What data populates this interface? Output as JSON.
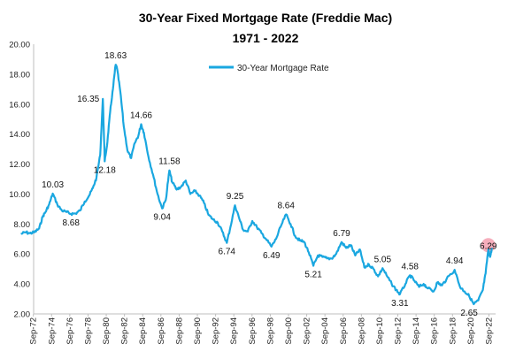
{
  "chart_data": {
    "type": "line",
    "title": "30-Year Fixed Mortgage Rate (Freddie Mac)",
    "subtitle": "1971 - 2022",
    "xlabel": "",
    "ylabel": "",
    "ylim": [
      2.0,
      20.0
    ],
    "yticks": [
      "2.00",
      "4.00",
      "6.00",
      "8.00",
      "10.00",
      "12.00",
      "14.00",
      "16.00",
      "18.00",
      "20.00"
    ],
    "yticks_values": [
      2,
      4,
      6,
      8,
      10,
      12,
      14,
      16,
      18,
      20
    ],
    "xlim": [
      1972.7,
      2023.4
    ],
    "xticks": [
      "Sep-72",
      "Sep-74",
      "Sep-76",
      "Sep-78",
      "Sep-80",
      "Sep-82",
      "Sep-84",
      "Sep-86",
      "Sep-88",
      "Sep-90",
      "Sep-92",
      "Sep-94",
      "Sep-96",
      "Sep-98",
      "Sep-00",
      "Sep-02",
      "Sep-04",
      "Sep-06",
      "Sep-08",
      "Sep-10",
      "Sep-12",
      "Sep-14",
      "Sep-16",
      "Sep-18",
      "Sep-20",
      "Sep-22"
    ],
    "xticks_values": [
      1972.67,
      1974.67,
      1976.67,
      1978.67,
      1980.67,
      1982.67,
      1984.67,
      1986.67,
      1988.67,
      1990.67,
      1992.67,
      1994.67,
      1996.67,
      1998.67,
      2000.67,
      2002.67,
      2004.67,
      2006.67,
      2008.67,
      2010.67,
      2012.67,
      2014.67,
      2016.67,
      2018.67,
      2020.67,
      2022.67
    ],
    "grid": false,
    "legend": "top-center",
    "series": [
      {
        "name": "30-Year Mortgage Rate",
        "color": "#1aa7e0",
        "x": [
          1971.3,
          1971.8,
          1972.3,
          1972.8,
          1973.3,
          1973.7,
          1974.0,
          1974.4,
          1974.8,
          1975.3,
          1975.8,
          1976.3,
          1976.8,
          1977.3,
          1977.8,
          1978.3,
          1978.8,
          1979.2,
          1979.6,
          1980.0,
          1980.3,
          1980.5,
          1980.8,
          1981.1,
          1981.4,
          1981.7,
          1981.85,
          1982.2,
          1982.6,
          1983.0,
          1983.4,
          1983.8,
          1984.2,
          1984.5,
          1984.8,
          1985.3,
          1985.8,
          1986.3,
          1986.8,
          1987.2,
          1987.6,
          1987.9,
          1988.4,
          1988.9,
          1989.4,
          1989.9,
          1990.4,
          1990.9,
          1991.4,
          1991.9,
          1992.4,
          1992.9,
          1993.4,
          1993.9,
          1994.3,
          1994.8,
          1995.2,
          1995.7,
          1996.2,
          1996.7,
          1997.2,
          1997.7,
          1998.2,
          1998.8,
          1999.3,
          1999.8,
          2000.4,
          2000.9,
          2001.4,
          2001.9,
          2002.4,
          2002.9,
          2003.4,
          2003.9,
          2004.4,
          2004.9,
          2005.4,
          2005.9,
          2006.5,
          2007.0,
          2007.5,
          2008.0,
          2008.5,
          2009.0,
          2009.5,
          2010.0,
          2010.5,
          2011.0,
          2011.5,
          2012.0,
          2012.5,
          2012.9,
          2013.5,
          2014.0,
          2014.5,
          2015.0,
          2015.5,
          2016.0,
          2016.6,
          2017.0,
          2017.5,
          2018.0,
          2018.9,
          2019.5,
          2020.0,
          2020.5,
          2021.0,
          2021.5,
          2022.0,
          2022.3,
          2022.6,
          2022.8,
          2023.0
        ],
        "y": [
          7.33,
          7.45,
          7.38,
          7.45,
          7.7,
          8.5,
          8.8,
          9.3,
          10.03,
          9.3,
          8.9,
          8.8,
          8.68,
          8.7,
          8.9,
          9.5,
          9.9,
          10.4,
          11.1,
          12.6,
          16.35,
          12.18,
          13.5,
          15.5,
          17.0,
          18.63,
          18.4,
          16.9,
          14.5,
          12.9,
          12.4,
          13.4,
          13.9,
          14.66,
          14.1,
          12.5,
          11.3,
          10.0,
          9.04,
          9.6,
          11.58,
          10.8,
          10.3,
          10.5,
          10.9,
          10.0,
          10.2,
          9.9,
          9.4,
          8.6,
          8.3,
          8.1,
          7.5,
          6.74,
          7.8,
          9.25,
          8.5,
          7.6,
          7.5,
          8.2,
          7.8,
          7.4,
          7.0,
          6.49,
          7.0,
          7.8,
          8.64,
          8.0,
          7.2,
          6.9,
          6.8,
          6.1,
          5.21,
          5.9,
          5.8,
          5.7,
          5.7,
          6.0,
          6.79,
          6.4,
          6.6,
          5.9,
          6.3,
          5.1,
          5.3,
          5.0,
          4.5,
          5.05,
          4.5,
          4.0,
          3.6,
          3.31,
          4.0,
          4.58,
          4.2,
          3.8,
          4.0,
          3.7,
          3.5,
          4.1,
          3.9,
          4.3,
          4.94,
          3.8,
          3.5,
          3.2,
          2.65,
          2.9,
          3.6,
          4.7,
          6.29,
          5.8,
          6.4
        ]
      }
    ],
    "annotations": [
      {
        "x": 1974.8,
        "y": 10.03,
        "label": "10.03",
        "pos": "above"
      },
      {
        "x": 1976.8,
        "y": 8.68,
        "label": "8.68",
        "pos": "below"
      },
      {
        "x": 1980.3,
        "y": 16.35,
        "label": "16.35",
        "pos": "left"
      },
      {
        "x": 1980.5,
        "y": 12.18,
        "label": "12.18",
        "pos": "below"
      },
      {
        "x": 1981.7,
        "y": 18.63,
        "label": "18.63",
        "pos": "above"
      },
      {
        "x": 1984.5,
        "y": 14.66,
        "label": "14.66",
        "pos": "above"
      },
      {
        "x": 1986.8,
        "y": 9.04,
        "label": "9.04",
        "pos": "below"
      },
      {
        "x": 1987.6,
        "y": 11.58,
        "label": "11.58",
        "pos": "above"
      },
      {
        "x": 1993.9,
        "y": 6.74,
        "label": "6.74",
        "pos": "below"
      },
      {
        "x": 1994.8,
        "y": 9.25,
        "label": "9.25",
        "pos": "above"
      },
      {
        "x": 1998.8,
        "y": 6.49,
        "label": "6.49",
        "pos": "below"
      },
      {
        "x": 2000.4,
        "y": 8.64,
        "label": "8.64",
        "pos": "above"
      },
      {
        "x": 2003.4,
        "y": 5.21,
        "label": "5.21",
        "pos": "below"
      },
      {
        "x": 2006.5,
        "y": 6.79,
        "label": "6.79",
        "pos": "above"
      },
      {
        "x": 2011.0,
        "y": 5.05,
        "label": "5.05",
        "pos": "above"
      },
      {
        "x": 2012.9,
        "y": 3.31,
        "label": "3.31",
        "pos": "below"
      },
      {
        "x": 2014.0,
        "y": 4.58,
        "label": "4.58",
        "pos": "above"
      },
      {
        "x": 2018.9,
        "y": 4.94,
        "label": "4.94",
        "pos": "above"
      },
      {
        "x": 2020.5,
        "y": 2.65,
        "label": "2.65",
        "pos": "below"
      },
      {
        "x": 2022.6,
        "y": 6.29,
        "label": "6.29",
        "pos": "highlight"
      }
    ],
    "highlight_color": "#f4a0b0"
  }
}
